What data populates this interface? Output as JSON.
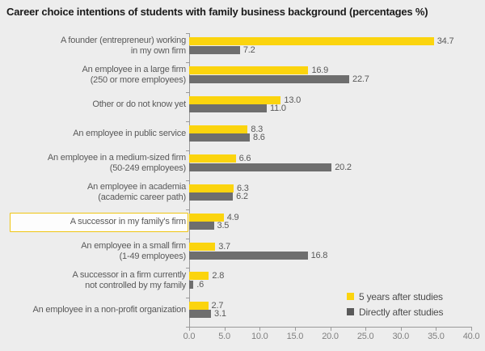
{
  "title": "Career choice intentions of students with family business background (percentages %)",
  "colors": {
    "background": "#EDEDED",
    "bar_5yr_yellow": "#FBD40E",
    "bar_direct_gray": "#6E6E6E",
    "legend_direct_gray": "#595959",
    "axis_gray": "#9A9A9A",
    "label_text_gray": "#595959",
    "highlight_border_yellow": "#EFC511"
  },
  "legend": [
    {
      "label": "5 years after studies",
      "color": "#FBD40E"
    },
    {
      "label": "Directly after studies",
      "color": "#595959"
    }
  ],
  "chart_data": {
    "type": "bar",
    "orientation": "horizontal",
    "title": "Career choice intentions of students with family business background (percentages %)",
    "xlabel": "",
    "ylabel": "",
    "xlim": [
      0,
      40
    ],
    "xticks": [
      "0.0",
      "5.0",
      "10.0",
      "15.0",
      "20.0",
      "25.0",
      "30.0",
      "35.0",
      "40.0"
    ],
    "grid": false,
    "legend_position": "bottom-right",
    "highlighted_category_index": 6,
    "categories": [
      {
        "lines": [
          "A founder (entrepreneur) working",
          "in my own firm"
        ],
        "highlighted": false
      },
      {
        "lines": [
          "An employee in a large firm",
          "(250 or more employees)"
        ],
        "highlighted": false
      },
      {
        "lines": [
          "Other or do not know yet"
        ],
        "highlighted": false
      },
      {
        "lines": [
          "An employee in public service"
        ],
        "highlighted": false
      },
      {
        "lines": [
          "An employee in a medium-sized firm",
          "(50-249 employees)"
        ],
        "highlighted": false
      },
      {
        "lines": [
          "An employee in academia",
          "(academic career path)"
        ],
        "highlighted": false
      },
      {
        "lines": [
          "A successor in my family's firm"
        ],
        "highlighted": true
      },
      {
        "lines": [
          "An employee in a small firm",
          "(1-49 employees)"
        ],
        "highlighted": false
      },
      {
        "lines": [
          "A successor in a firm currently",
          "not controlled by my family"
        ],
        "highlighted": false
      },
      {
        "lines": [
          "An employee in a non-profit organization"
        ],
        "highlighted": false
      }
    ],
    "series": [
      {
        "name": "5 years after studies",
        "color": "#FBD40E",
        "values": [
          34.7,
          16.9,
          13.0,
          8.3,
          6.6,
          6.3,
          4.9,
          3.7,
          2.8,
          2.7
        ],
        "labels": [
          "34.7",
          "16.9",
          "13.0",
          "8.3",
          "6.6",
          "6.3",
          "4.9",
          "3.7",
          "2.8",
          "2.7"
        ]
      },
      {
        "name": "Directly after studies",
        "color": "#6E6E6E",
        "values": [
          7.2,
          22.7,
          11.0,
          8.6,
          20.2,
          6.2,
          3.5,
          16.8,
          0.6,
          3.1
        ],
        "labels": [
          "7.2",
          "22.7",
          "11.0",
          "8.6",
          "20.2",
          "6.2",
          "3.5",
          "16.8",
          ".6",
          "3.1"
        ]
      }
    ]
  }
}
